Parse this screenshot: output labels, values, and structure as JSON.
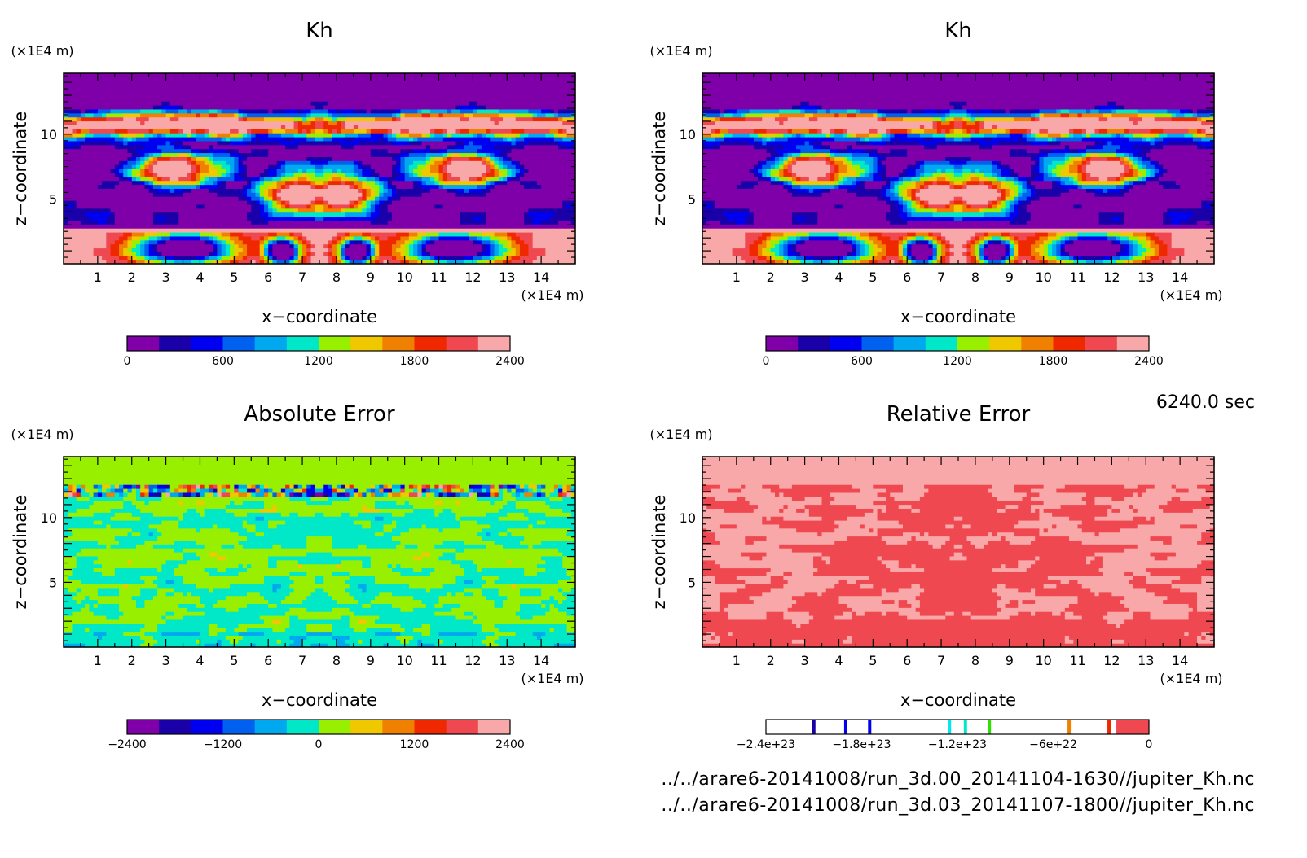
{
  "timestamp": "6240.0 sec",
  "files": [
    "../../arare6-20141008/run_3d.00_20141104-1630//jupiter_Kh.nc",
    "../../arare6-20141008/run_3d.03_20141107-1800//jupiter_Kh.nc"
  ],
  "colors": {
    "kh_palette": [
      "#7f00a8",
      "#1a00a8",
      "#0000f0",
      "#0060f0",
      "#00a8f0",
      "#00e8c8",
      "#98f000",
      "#f0c800",
      "#f08000",
      "#f02800",
      "#f04850",
      "#f8a8a8"
    ],
    "diverging_palette": [
      "#7f00a8",
      "#1a00a8",
      "#0000f0",
      "#0060f0",
      "#00a8f0",
      "#00e8c8",
      "#98f000",
      "#f0c800",
      "#f08000",
      "#f02800",
      "#f04850",
      "#f8a8a8"
    ]
  },
  "chart_data": [
    {
      "type": "heatmap",
      "title": "Kh",
      "xlabel": "x-coordinate",
      "ylabel": "z-coordinate",
      "x_unit": "(x1E4 m)",
      "y_unit": "(x1E4 m)",
      "xlim": [
        0,
        15
      ],
      "ylim": [
        0,
        14.7
      ],
      "xticks": [
        "1",
        "2",
        "3",
        "4",
        "5",
        "6",
        "7",
        "8",
        "9",
        "10",
        "11",
        "12",
        "13",
        "14"
      ],
      "yticks": [
        "5",
        "10"
      ],
      "colorbar": {
        "min": 0,
        "max": 2400,
        "levels": 12,
        "tick_labels": [
          "0",
          "600",
          "1200",
          "1800",
          "2400"
        ]
      },
      "field": "kh"
    },
    {
      "type": "heatmap",
      "title": "Kh",
      "xlabel": "x-coordinate",
      "ylabel": "z-coordinate",
      "x_unit": "(x1E4 m)",
      "y_unit": "(x1E4 m)",
      "xlim": [
        0,
        15
      ],
      "ylim": [
        0,
        14.7
      ],
      "xticks": [
        "1",
        "2",
        "3",
        "4",
        "5",
        "6",
        "7",
        "8",
        "9",
        "10",
        "11",
        "12",
        "13",
        "14"
      ],
      "yticks": [
        "5",
        "10"
      ],
      "colorbar": {
        "min": 0,
        "max": 2400,
        "levels": 12,
        "tick_labels": [
          "0",
          "600",
          "1200",
          "1800",
          "2400"
        ]
      },
      "field": "kh"
    },
    {
      "type": "heatmap",
      "title": "Absolute Error",
      "xlabel": "x-coordinate",
      "ylabel": "z-coordinate",
      "x_unit": "(x1E4 m)",
      "y_unit": "(x1E4 m)",
      "xlim": [
        0,
        15
      ],
      "ylim": [
        0,
        14.7
      ],
      "xticks": [
        "1",
        "2",
        "3",
        "4",
        "5",
        "6",
        "7",
        "8",
        "9",
        "10",
        "11",
        "12",
        "13",
        "14"
      ],
      "yticks": [
        "5",
        "10"
      ],
      "colorbar": {
        "min": -2400,
        "max": 2400,
        "levels": 12,
        "tick_labels": [
          "-2400",
          "-1200",
          "0",
          "1200",
          "2400"
        ]
      },
      "field": "abs"
    },
    {
      "type": "heatmap",
      "title": "Relative Error",
      "xlabel": "x-coordinate",
      "ylabel": "z-coordinate",
      "x_unit": "(x1E4 m)",
      "y_unit": "(x1E4 m)",
      "xlim": [
        0,
        15
      ],
      "ylim": [
        0,
        14.7
      ],
      "xticks": [
        "1",
        "2",
        "3",
        "4",
        "5",
        "6",
        "7",
        "8",
        "9",
        "10",
        "11",
        "12",
        "13",
        "14"
      ],
      "yticks": [
        "5",
        "10"
      ],
      "colorbar": {
        "min": -2.4e+23,
        "max": 0,
        "tick_labels": [
          "-2.4e+23",
          "-1.8e+23",
          "-1.2e+23",
          "-6e+22",
          "0"
        ],
        "line_levels": [
          -2.1e+23,
          -1.9e+23,
          -1.75e+23,
          -1.25e+23,
          -1.15e+23,
          -1e+23,
          -5e+22,
          -2.5e+22
        ],
        "line_colors": [
          "#1a00a8",
          "#0000f0",
          "#0000f0",
          "#00e8f0",
          "#00e8c8",
          "#30e000",
          "#f08000",
          "#f02800"
        ],
        "filled_top_color": "#f04850"
      },
      "field": "rel"
    }
  ]
}
